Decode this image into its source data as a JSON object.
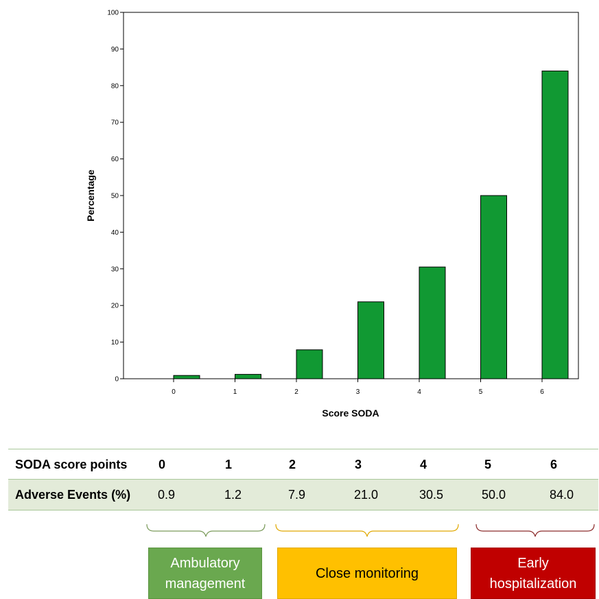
{
  "chart_data": {
    "type": "bar",
    "categories": [
      "0",
      "1",
      "2",
      "3",
      "4",
      "5",
      "6"
    ],
    "values": [
      0.9,
      1.2,
      7.9,
      21.0,
      30.5,
      50.0,
      84.0
    ],
    "xlabel": "Score SODA",
    "ylabel": "Percentage",
    "ylim": [
      0,
      100
    ],
    "yticks": [
      "0",
      "10",
      "20",
      "30",
      "40",
      "50",
      "60",
      "70",
      "80",
      "90",
      "100"
    ],
    "bar_color": "#119933",
    "grid": false
  },
  "table": {
    "header_label": "SODA score points",
    "header_values": [
      "0",
      "1",
      "2",
      "3",
      "4",
      "5",
      "6"
    ],
    "row_label": "Adverse Events (%)",
    "row_values": [
      "0.9",
      "1.2",
      "7.9",
      "21.0",
      "30.5",
      "50.0",
      "84.0"
    ]
  },
  "categories_boxes": {
    "ambulatory": {
      "line1": "Ambulatory",
      "line2": "management",
      "color": "#6aa84f"
    },
    "monitoring": {
      "text": "Close monitoring",
      "color": "#ffc000"
    },
    "hospitalization": {
      "line1": "Early",
      "line2": "hospitalization",
      "color": "#c00000"
    }
  }
}
